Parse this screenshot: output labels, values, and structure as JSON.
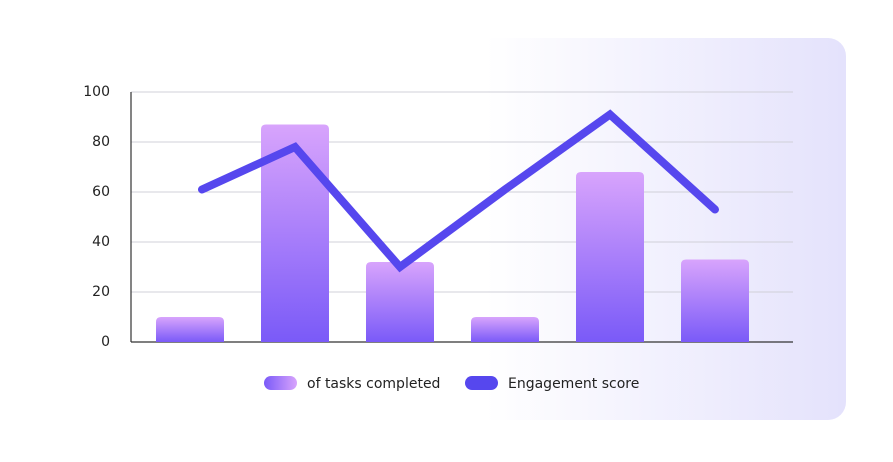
{
  "chart_data": {
    "type": "bar",
    "categories": [
      null,
      null,
      null,
      null,
      null,
      null
    ],
    "series": [
      {
        "name": "of tasks completed",
        "type": "bar",
        "color": "#7a5af8",
        "color_top": "#d8a4fc",
        "values": [
          10,
          87,
          32,
          10,
          68,
          33
        ]
      },
      {
        "name": "Engagement score",
        "type": "line",
        "color": "#5647ee",
        "values": [
          61,
          78,
          30,
          61,
          91,
          53
        ]
      }
    ],
    "ylim": [
      0,
      100
    ],
    "yticks": [
      0,
      20,
      40,
      60,
      80,
      100
    ],
    "grid": true
  }
}
